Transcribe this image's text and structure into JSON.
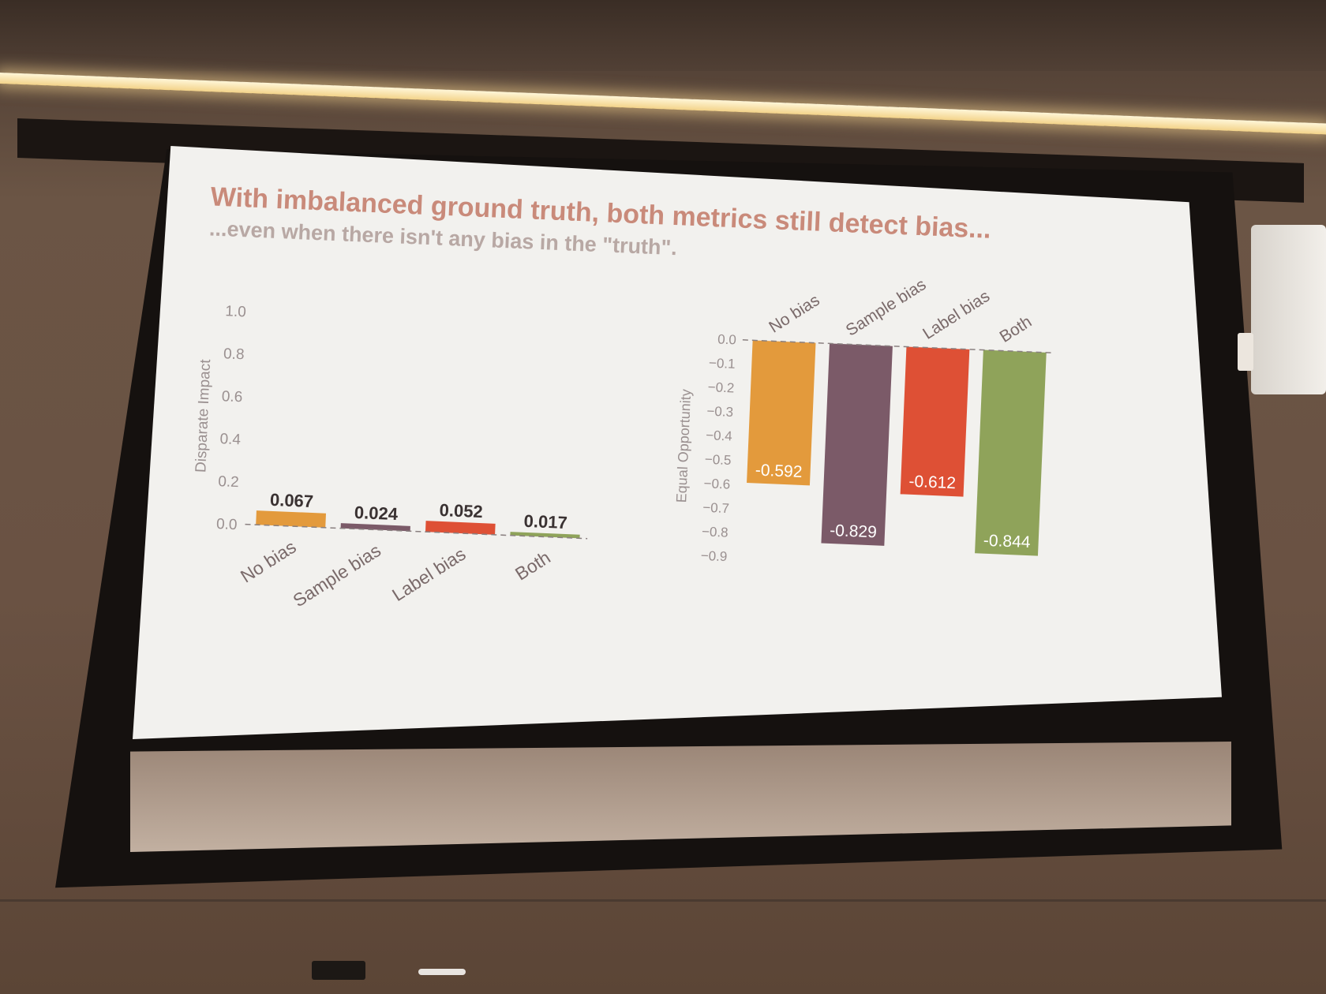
{
  "slide": {
    "title": "With imbalanced ground truth, both metrics still detect bias...",
    "subtitle": "...even when there isn't any bias in the \"truth\"."
  },
  "colors": {
    "no_bias": "#e39a3c",
    "sample_bias": "#7b5a68",
    "label_bias": "#de5035",
    "both": "#8fa35a",
    "axis_text": "#9a9090",
    "title": "#c98a7a",
    "subtitle": "#b8a8a4"
  },
  "chart_data": [
    {
      "type": "bar",
      "categories": [
        "No bias",
        "Sample bias",
        "Label bias",
        "Both"
      ],
      "values": [
        0.067,
        0.024,
        0.052,
        0.017
      ],
      "value_labels": [
        "0.067",
        "0.024",
        "0.052",
        "0.017"
      ],
      "ylabel": "Disparate Impact",
      "ylim": [
        0,
        1.0
      ],
      "yticks": [
        0.0,
        0.2,
        0.4,
        0.6,
        0.8,
        1.0
      ],
      "ytick_labels": [
        "0.0",
        "0.2",
        "0.4",
        "0.6",
        "0.8",
        "1.0"
      ],
      "grid": false,
      "legend": "none"
    },
    {
      "type": "bar",
      "categories": [
        "No bias",
        "Sample bias",
        "Label bias",
        "Both"
      ],
      "values": [
        -0.592,
        -0.829,
        -0.612,
        -0.844
      ],
      "value_labels": [
        "-0.592",
        "-0.829",
        "-0.612",
        "-0.844"
      ],
      "ylabel": "Equal Opportunity",
      "ylim": [
        -0.9,
        0.0
      ],
      "yticks": [
        0.0,
        -0.1,
        -0.2,
        -0.3,
        -0.4,
        -0.5,
        -0.6,
        -0.7,
        -0.8,
        -0.9
      ],
      "ytick_labels": [
        "0.0",
        "−0.1",
        "−0.2",
        "−0.3",
        "−0.4",
        "−0.5",
        "−0.6",
        "−0.7",
        "−0.8",
        "−0.9"
      ],
      "grid": false,
      "legend": "none"
    }
  ]
}
